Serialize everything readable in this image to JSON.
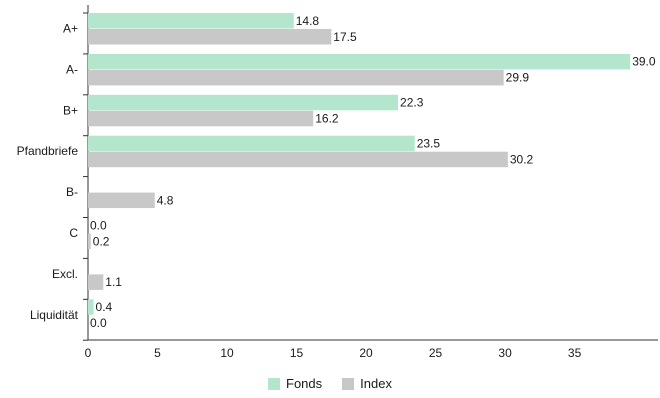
{
  "chart_data": {
    "type": "bar",
    "orientation": "horizontal",
    "categories": [
      "A+",
      "A-",
      "B+",
      "Pfandbriefe",
      "B-",
      "C",
      "Excl.",
      "Liquidität"
    ],
    "series": [
      {
        "name": "Fonds",
        "color": "#b3e6cc",
        "values": [
          14.8,
          39.0,
          22.3,
          23.5,
          null,
          0.0,
          null,
          0.4
        ]
      },
      {
        "name": "Index",
        "color": "#c8c8c8",
        "values": [
          17.5,
          29.9,
          16.2,
          30.2,
          4.8,
          0.2,
          1.1,
          0.0
        ]
      }
    ],
    "x_ticks": [
      0,
      5,
      10,
      15,
      20,
      25,
      30,
      35
    ],
    "xlim": [
      0,
      41
    ],
    "grid": false,
    "legend_position": "bottom"
  }
}
